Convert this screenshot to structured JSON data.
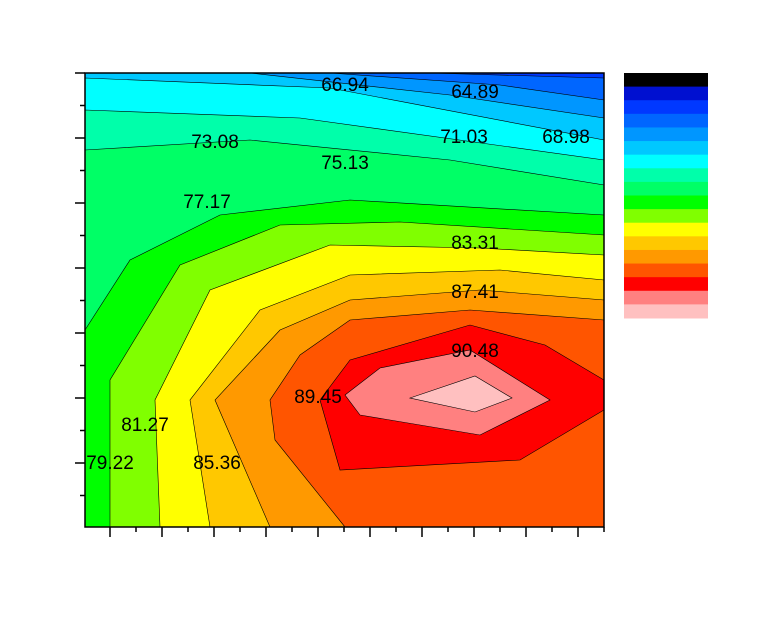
{
  "chart_data": {
    "type": "contour",
    "contour_labels": [
      66.94,
      64.89,
      73.08,
      71.03,
      68.98,
      75.13,
      77.17,
      83.31,
      87.41,
      90.48,
      89.45,
      81.27,
      79.22,
      85.36
    ],
    "colors": [
      "#0038ff",
      "#0066ff",
      "#0096ff",
      "#00c8ff",
      "#00ffff",
      "#00ffaa",
      "#00ff66",
      "#00ff00",
      "#80ff00",
      "#ffff00",
      "#ffc800",
      "#ff9900",
      "#ff5500",
      "#ff0000",
      "#ff8080",
      "#ffc0c0",
      "#ffffff"
    ],
    "colorbar": [
      "#000000",
      "#0010d0",
      "#0038ff",
      "#0066ff",
      "#0096ff",
      "#00c8ff",
      "#00ffff",
      "#00ffaa",
      "#00ff66",
      "#00ff00",
      "#80ff00",
      "#ffff00",
      "#ffc800",
      "#ff9900",
      "#ff5500",
      "#ff0000",
      "#ff8080",
      "#ffc0c0"
    ]
  }
}
